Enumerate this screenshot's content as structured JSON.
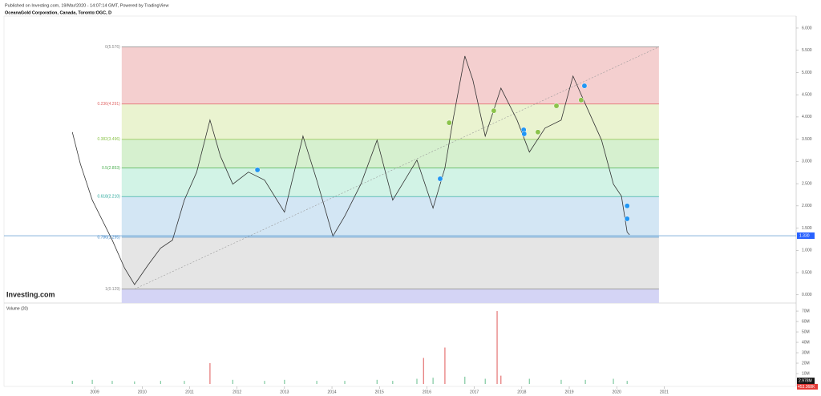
{
  "header": {
    "published": "Published on Investing.com, 19/Mar/2020 - 14:07:14 GMT, Powered by TradingView",
    "symbol": "OceanaGold Corporation, Canada, Toronto:OGC, D"
  },
  "chart_data": [
    {
      "type": "line",
      "watermark": "Investing.com",
      "color": "#333333",
      "x": [
        2008.53,
        2008.7,
        2008.95,
        2009.37,
        2009.63,
        2009.84,
        2010.13,
        2010.39,
        2010.64,
        2010.89,
        2011.15,
        2011.43,
        2011.65,
        2011.91,
        2012.24,
        2012.58,
        2013.0,
        2013.39,
        2013.68,
        2014.02,
        2014.27,
        2014.61,
        2014.95,
        2015.28,
        2015.79,
        2016.13,
        2016.38,
        2016.55,
        2016.8,
        2016.97,
        2017.23,
        2017.56,
        2017.9,
        2018.16,
        2018.49,
        2018.83,
        2019.08,
        2019.34,
        2019.68,
        2019.93,
        2020.1,
        2020.22,
        2020.27
      ],
      "values": [
        3.66,
        2.94,
        2.13,
        1.23,
        0.6,
        0.23,
        0.68,
        1.05,
        1.23,
        2.13,
        2.76,
        3.93,
        3.12,
        2.49,
        2.76,
        2.58,
        1.86,
        3.57,
        2.58,
        1.32,
        1.77,
        2.49,
        3.48,
        2.13,
        3.03,
        1.95,
        2.85,
        3.93,
        5.37,
        4.83,
        3.57,
        4.65,
        3.93,
        3.21,
        3.75,
        3.93,
        4.92,
        4.29,
        3.48,
        2.49,
        2.22,
        1.41,
        1.35
      ],
      "xlim": [
        2007.09,
        2023.73
      ],
      "xticks": [
        2009,
        2010,
        2011,
        2012,
        2013,
        2014,
        2015,
        2016,
        2017,
        2018,
        2019,
        2020,
        2021
      ],
      "ylim": [
        -0.13,
        6.27
      ],
      "yticks": [
        {
          "value": 0,
          "label": "0.000"
        },
        {
          "value": 0.5,
          "label": "0.500"
        },
        {
          "value": 1,
          "label": "1.000"
        },
        {
          "value": 1.5,
          "label": "1.500"
        },
        {
          "value": 2,
          "label": "2.000"
        },
        {
          "value": 2.5,
          "label": "2.500"
        },
        {
          "value": 3,
          "label": "3.000"
        },
        {
          "value": 3.5,
          "label": "3.500"
        },
        {
          "value": 4,
          "label": "4.000"
        },
        {
          "value": 4.5,
          "label": "4.500"
        },
        {
          "value": 5,
          "label": "5.000"
        },
        {
          "value": 5.5,
          "label": "5.500"
        },
        {
          "value": 6,
          "label": "6.000"
        }
      ],
      "last_price": {
        "value": 1.33,
        "label": "1.330"
      },
      "fib_x": [
        2009.57,
        2020.89
      ],
      "fib_levels": [
        {
          "label": "0(5.576)",
          "value": 5.576,
          "color": "#888888",
          "fill": "#f4cfcf"
        },
        {
          "label": "0.236(4.291)",
          "value": 4.291,
          "color": "#e06666",
          "fill": "#eaf3d0"
        },
        {
          "label": "0.382(3.496)",
          "value": 3.496,
          "color": "#8bc34a",
          "fill": "#d6f0cf"
        },
        {
          "label": "0.5(2.853)",
          "value": 2.853,
          "color": "#4caf50",
          "fill": "#d2f3e6"
        },
        {
          "label": "0.618(2.210)",
          "value": 2.21,
          "color": "#26a69a",
          "fill": "#d3e6f4"
        },
        {
          "label": "0.786(1.295)",
          "value": 1.295,
          "color": "#3d85c6",
          "fill": "#e5e5e5"
        },
        {
          "label": "1(0.129)",
          "value": 0.129,
          "color": "#888888",
          "fill": "#d4d4f5"
        }
      ],
      "events": [
        {
          "x": 2012.43,
          "y": 2.81,
          "color": "#2196f3"
        },
        {
          "x": 2016.28,
          "y": 2.61,
          "color": "#2196f3"
        },
        {
          "x": 2016.47,
          "y": 3.87,
          "color": "#8bc34a"
        },
        {
          "x": 2017.41,
          "y": 4.14,
          "color": "#8bc34a"
        },
        {
          "x": 2018.04,
          "y": 3.71,
          "color": "#2196f3"
        },
        {
          "x": 2018.05,
          "y": 3.62,
          "color": "#2196f3"
        },
        {
          "x": 2018.34,
          "y": 3.66,
          "color": "#8bc34a"
        },
        {
          "x": 2018.73,
          "y": 4.25,
          "color": "#8bc34a"
        },
        {
          "x": 2019.25,
          "y": 4.38,
          "color": "#8bc34a"
        },
        {
          "x": 2019.32,
          "y": 4.7,
          "color": "#2196f3"
        },
        {
          "x": 2020.22,
          "y": 2.0,
          "color": "#2196f3"
        },
        {
          "x": 2020.22,
          "y": 1.71,
          "color": "#2196f3"
        }
      ]
    },
    {
      "type": "bar",
      "title": "Volume (20)",
      "color": "#7fc9a0",
      "spike_color": "#e57373",
      "x": [
        2008.53,
        2008.95,
        2009.37,
        2009.84,
        2010.39,
        2010.89,
        2011.43,
        2011.91,
        2012.58,
        2013.0,
        2013.68,
        2014.27,
        2014.95,
        2015.28,
        2015.79,
        2015.93,
        2016.13,
        2016.38,
        2016.8,
        2017.23,
        2017.48,
        2017.56,
        2018.16,
        2018.83,
        2019.34,
        2019.93,
        2020.22
      ],
      "values": [
        3000000,
        4000000,
        3000000,
        2500000,
        3000000,
        3000000,
        20000000,
        4000000,
        3000000,
        4000000,
        3000000,
        3000000,
        4000000,
        3000000,
        5000000,
        25000000,
        6000000,
        35000000,
        7000000,
        5000000,
        70000000,
        8000000,
        5000000,
        4000000,
        4000000,
        5000000,
        2978000
      ],
      "ylim": [
        -2300000,
        76200000
      ],
      "yticks": [
        {
          "value": 10000000,
          "label": "10M"
        },
        {
          "value": 20000000,
          "label": "20M"
        },
        {
          "value": 30000000,
          "label": "30M"
        },
        {
          "value": 40000000,
          "label": "40M"
        },
        {
          "value": 50000000,
          "label": "50M"
        },
        {
          "value": 60000000,
          "label": "60M"
        },
        {
          "value": 70000000,
          "label": "70M"
        }
      ],
      "last_volume": {
        "value": 2978000,
        "label": "2.978M"
      },
      "volume_ma": {
        "value": 453368,
        "label": "453.368K"
      }
    }
  ]
}
